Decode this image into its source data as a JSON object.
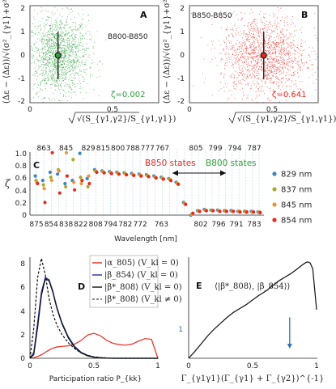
{
  "colors": {
    "green": "#2e9e3a",
    "red": "#e8291f",
    "blue": "#3a84c4",
    "orange": "#e9953a",
    "olive": "#a9ac2c",
    "navy": "#1b2f9e",
    "black": "#111111",
    "blueArrow": "#2f6fb3",
    "vline": "#b9d3ea"
  },
  "chart_data": [
    {
      "id": "A",
      "type": "scatter",
      "panel_label": "A",
      "annotation": "B800-B850",
      "zeta_label": "ζ=0.002",
      "xlabel": "√(S_{γ1,γ2}/S_{γ1,γ1})",
      "ylabel": "(Δε − ⟨Δε⟩)/√(σ²_{γ1}+σ²_{γ2})",
      "xlim": [
        0,
        0.78
      ],
      "ylim": [
        -2,
        2.1
      ],
      "xticks": [
        "0",
        "0.5"
      ],
      "yticks": [
        "-2",
        "-1",
        "0",
        "1",
        "2"
      ],
      "center": {
        "x": 0.17,
        "y": 0.0,
        "yerr": 1.0
      },
      "x_mean": 0.17,
      "x_sd": 0.09
    },
    {
      "id": "B",
      "type": "scatter",
      "panel_label": "B",
      "annotation": "B850-B850",
      "zeta_label": "ζ=0.641",
      "xlabel": "√(S_{γ1,γ2}/S_{γ1,γ1})",
      "ylabel": "(Δε − ⟨Δε⟩)/√(σ²_{γ1}+σ²_{γ2})",
      "xlim": [
        0,
        0.78
      ],
      "ylim": [
        -2,
        2.1
      ],
      "xticks": [
        "0",
        "0.5"
      ],
      "yticks": [
        "-2",
        "-1",
        "0",
        "1",
        "2"
      ],
      "center": {
        "x": 0.45,
        "y": 0.0,
        "yerr": 1.0
      },
      "x_mean": 0.45,
      "x_sd": 0.13
    },
    {
      "id": "C",
      "type": "scatter",
      "panel_label": "C",
      "ylabel": "ζ",
      "xlabel": "Wavelength [nm]",
      "ylim": [
        0,
        1
      ],
      "yticks": [
        "0",
        "0.2",
        "0.4",
        "0.6",
        "0.8",
        "1.0"
      ],
      "top_ticks": [
        "863",
        "845",
        "829",
        "815",
        "800",
        "788",
        "777",
        "767",
        "805",
        "799",
        "794",
        "787"
      ],
      "bottom_ticks": [
        "875",
        "854",
        "838",
        "822",
        "808",
        "794",
        "782",
        "772",
        "763",
        "802",
        "796",
        "791",
        "783"
      ],
      "b850_label": "B850 states",
      "b800_label": "B800 states",
      "legend": [
        "829 nm",
        "837 nm",
        "845 nm",
        "854 nm"
      ],
      "series": [
        {
          "name": "829 nm",
          "values": [
            0.62,
            0.55,
            0.68,
            0.65,
            0.5,
            0.55,
            0.98,
            0.58,
            0.72,
            0.7,
            0.69,
            0.68,
            0.67,
            0.66,
            0.65,
            0.64,
            0.62,
            0.6,
            0.58,
            0.52,
            0.2,
            0.0,
            0.07,
            0.09,
            0.08,
            0.08,
            0.07,
            0.07,
            0.06,
            0.06,
            0.06,
            0.05
          ]
        },
        {
          "name": "837 nm",
          "values": [
            0.55,
            0.48,
            0.6,
            0.72,
            0.45,
            0.88,
            0.6,
            0.45,
            0.7,
            0.69,
            0.68,
            0.67,
            0.66,
            0.65,
            0.64,
            0.63,
            0.61,
            0.59,
            0.57,
            0.51,
            0.19,
            0.01,
            0.07,
            0.08,
            0.08,
            0.07,
            0.07,
            0.06,
            0.06,
            0.06,
            0.05,
            0.05
          ]
        },
        {
          "name": "845 nm",
          "values": [
            0.52,
            0.42,
            0.55,
            0.7,
            0.99,
            0.52,
            0.5,
            0.62,
            0.69,
            0.68,
            0.67,
            0.66,
            0.65,
            0.64,
            0.63,
            0.62,
            0.6,
            0.58,
            0.56,
            0.5,
            0.18,
            0.02,
            0.06,
            0.08,
            0.07,
            0.07,
            0.06,
            0.06,
            0.06,
            0.05,
            0.05,
            0.05
          ]
        },
        {
          "name": "854 nm",
          "values": [
            0.5,
            0.2,
            0.99,
            0.35,
            0.62,
            0.4,
            0.55,
            0.5,
            0.68,
            0.67,
            0.66,
            0.65,
            0.64,
            0.63,
            0.62,
            0.61,
            0.59,
            0.57,
            0.55,
            0.49,
            0.17,
            0.03,
            0.06,
            0.07,
            0.07,
            0.06,
            0.06,
            0.06,
            0.05,
            0.05,
            0.05,
            0.04
          ]
        }
      ]
    },
    {
      "id": "D",
      "type": "line",
      "panel_label": "D",
      "xlabel": "Participation ratio P_{kk}",
      "xlim": [
        0,
        1
      ],
      "ylim": [
        0,
        8.5
      ],
      "xticks": [
        "0",
        "0.5",
        "1"
      ],
      "yticks": [
        "0",
        "2",
        "4",
        "6",
        "8"
      ],
      "x": [
        0.0,
        0.03,
        0.06,
        0.09,
        0.12,
        0.15,
        0.18,
        0.21,
        0.25,
        0.3,
        0.35,
        0.4,
        0.45,
        0.5,
        0.55,
        0.6,
        0.65,
        0.7,
        0.75,
        0.8,
        0.85,
        0.9,
        0.95,
        1.0
      ],
      "series": [
        {
          "name": "|α_805⟩ (V_kl = 0)",
          "color": "red",
          "dash": "",
          "values": [
            0.0,
            0.05,
            0.15,
            0.3,
            0.5,
            0.7,
            0.85,
            0.95,
            1.0,
            1.05,
            1.2,
            1.5,
            1.95,
            2.1,
            1.9,
            1.5,
            1.25,
            1.15,
            1.1,
            1.2,
            1.45,
            1.65,
            1.6,
            0.0
          ]
        },
        {
          "name": "|β_854⟩ (V_kl = 0)",
          "color": "navy",
          "dash": "",
          "values": [
            0.0,
            0.5,
            3.0,
            5.6,
            6.8,
            6.6,
            5.6,
            4.3,
            3.0,
            1.8,
            1.0,
            0.5,
            0.25,
            0.1,
            0.05,
            0.02,
            0,
            0,
            0,
            0,
            0,
            0,
            0,
            0
          ]
        },
        {
          "name": "|β*_808⟩ (V_kl = 0)",
          "color": "black",
          "dash": "",
          "values": [
            0.0,
            0.3,
            2.6,
            5.3,
            6.7,
            6.5,
            5.5,
            4.2,
            2.9,
            1.7,
            0.9,
            0.45,
            0.2,
            0.08,
            0.04,
            0.01,
            0,
            0,
            0,
            0,
            0,
            0,
            0,
            0
          ]
        },
        {
          "name": "|β*_808⟩ (V_kl ≠ 0)",
          "color": "black",
          "dash": "3 2",
          "values": [
            0.0,
            2.5,
            6.8,
            8.4,
            7.0,
            5.0,
            3.7,
            2.8,
            2.0,
            1.3,
            0.8,
            0.45,
            0.25,
            0.12,
            0.06,
            0.03,
            0.01,
            0,
            0,
            0,
            0,
            0,
            0,
            0
          ]
        }
      ]
    },
    {
      "id": "E",
      "type": "line",
      "panel_label": "E",
      "series_label": "⟨|β*_808⟩, |β_854⟩⟩",
      "xlabel": "Γ_{γ1γ1}(Γ_{γ1} + Γ_{γ2})^{-1}",
      "xlim": [
        0,
        1
      ],
      "ylim": [
        0,
        2.6
      ],
      "xticks": [
        "0",
        "0.5",
        "1"
      ],
      "yticks": [
        "1"
      ],
      "x": [
        0.0,
        0.05,
        0.1,
        0.15,
        0.2,
        0.25,
        0.3,
        0.35,
        0.4,
        0.45,
        0.5,
        0.55,
        0.6,
        0.65,
        0.7,
        0.75,
        0.8,
        0.85,
        0.88,
        0.91,
        0.93,
        0.95,
        0.97,
        1.0
      ],
      "values": [
        0.0,
        0.18,
        0.38,
        0.58,
        0.75,
        0.9,
        1.05,
        1.18,
        1.28,
        1.38,
        1.5,
        1.62,
        1.72,
        1.85,
        1.98,
        2.08,
        2.18,
        2.3,
        2.38,
        2.45,
        2.48,
        2.45,
        2.3,
        1.25
      ],
      "arrow": {
        "x": 0.79,
        "y_from": 1.05,
        "y_to": 0.25
      }
    }
  ]
}
